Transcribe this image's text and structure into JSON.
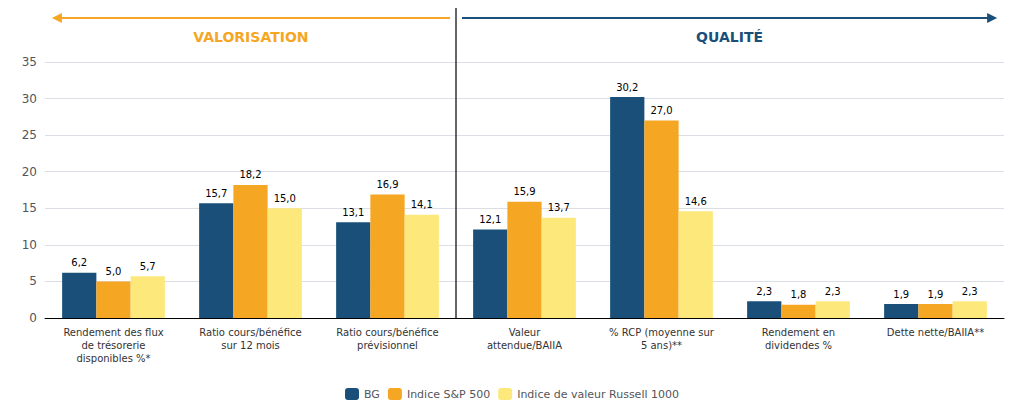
{
  "chart_data": {
    "type": "bar",
    "categories": [
      "Rendement des flux\nde trésorerie\ndisponibles %*",
      "Ratio cours/bénéfice\nsur 12 mois",
      "Ratio cours/bénéfice\nprévisionnel",
      "Valeur\nattendue/BAIIA",
      "% RCP (moyenne sur\n5 ans)**",
      "Rendement en\ndividendes %",
      "Dette nette/BAIIA**"
    ],
    "series": [
      {
        "name": "BG",
        "color": "#1a4f7a",
        "values": [
          6.2,
          15.7,
          13.1,
          12.1,
          30.2,
          2.3,
          1.9
        ],
        "value_labels": [
          "6,2",
          "15,7",
          "13,1",
          "12,1",
          "30,2",
          "2,3",
          "1,9"
        ]
      },
      {
        "name": "Indice S&P 500",
        "color": "#f5a623",
        "values": [
          5.0,
          18.2,
          16.9,
          15.9,
          27.0,
          1.8,
          1.9
        ],
        "value_labels": [
          "5,0",
          "18,2",
          "16,9",
          "15,9",
          "27,0",
          "1,8",
          "1,9"
        ]
      },
      {
        "name": "Indice de valeur Russell 1000",
        "color": "#fde87c",
        "values": [
          5.7,
          15.0,
          14.1,
          13.7,
          14.6,
          2.3,
          2.3
        ],
        "value_labels": [
          "5,7",
          "15,0",
          "14,1",
          "13,7",
          "14,6",
          "2,3",
          "2,3"
        ]
      }
    ],
    "annotations": [
      {
        "text": "VALORISATION",
        "color": "#f5a623"
      },
      {
        "text": "QUALITÉ",
        "color": "#1a4f7a"
      }
    ],
    "ylim": [
      0,
      35
    ],
    "yticks": [
      0,
      5,
      10,
      15,
      20,
      25,
      30,
      35
    ],
    "grid": true,
    "legend": "bottom",
    "data_labels": true
  }
}
